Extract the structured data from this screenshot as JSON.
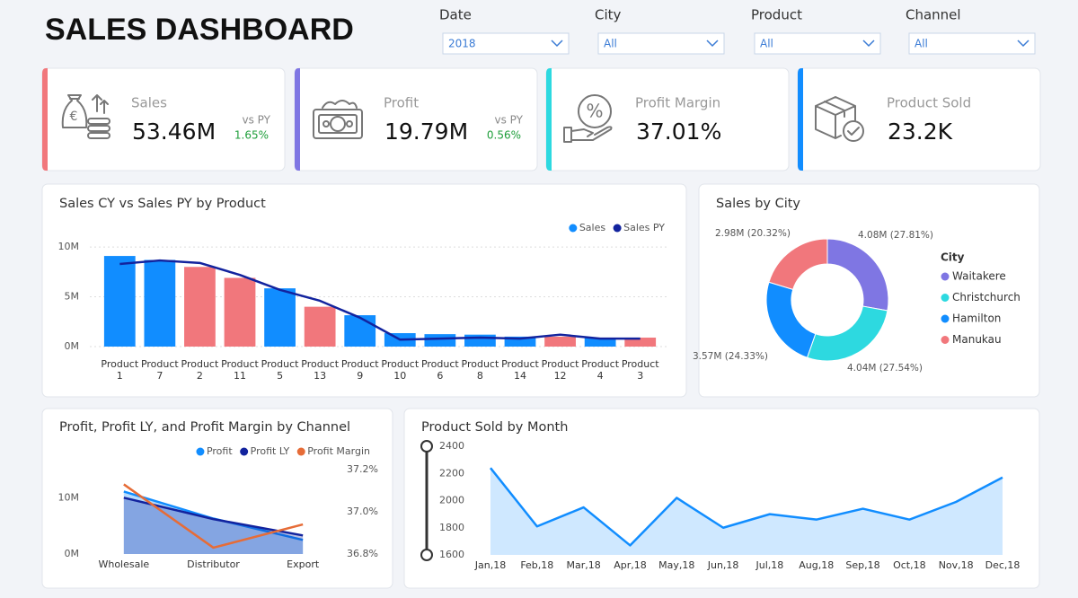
{
  "header": {
    "title": "SALES DASHBOARD"
  },
  "filters": [
    {
      "label": "Date",
      "value": "2018"
    },
    {
      "label": "City",
      "value": "All"
    },
    {
      "label": "Product",
      "value": "All"
    },
    {
      "label": "Channel",
      "value": "All"
    }
  ],
  "kpis": [
    {
      "label": "Sales",
      "value": "53.46M",
      "compare_label": "vs PY",
      "change": "1.65%",
      "color": "#F1777C"
    },
    {
      "label": "Profit",
      "value": "19.79M",
      "compare_label": "vs PY",
      "change": "0.56%",
      "color": "#7F76E3"
    },
    {
      "label": "Profit Margin",
      "value": "37.01%",
      "color": "#2DD9E0"
    },
    {
      "label": "Product Sold",
      "value": "23.2K",
      "color": "#118DFF"
    }
  ],
  "chart_data": [
    {
      "type": "combo",
      "title": "Sales CY vs Sales PY by Product",
      "categories": [
        "Product 1",
        "Product 7",
        "Product 2",
        "Product 11",
        "Product 5",
        "Product 13",
        "Product 9",
        "Product 10",
        "Product 6",
        "Product 8",
        "Product 14",
        "Product 12",
        "Product 4",
        "Product 3"
      ],
      "series": [
        {
          "name": "Sales",
          "type": "bar",
          "color": "#118DFF",
          "colors": [
            "#118DFF",
            "#118DFF",
            "#F1777C",
            "#F1777C",
            "#118DFF",
            "#F1777C",
            "#118DFF",
            "#118DFF",
            "#118DFF",
            "#118DFF",
            "#118DFF",
            "#F1777C",
            "#118DFF",
            "#F1777C"
          ],
          "values": [
            9.1,
            8.7,
            8.0,
            6.9,
            5.85,
            4.0,
            3.15,
            1.35,
            1.25,
            1.2,
            1.0,
            1.0,
            0.9,
            0.9
          ]
        },
        {
          "name": "Sales PY",
          "type": "line",
          "color": "#12239E",
          "values": [
            8.3,
            8.65,
            8.4,
            7.2,
            5.7,
            4.6,
            2.9,
            0.7,
            0.8,
            0.9,
            0.8,
            1.2,
            0.8,
            0.8
          ]
        }
      ],
      "ylim": [
        0,
        11
      ],
      "yticks": [
        {
          "value": 0,
          "label": "0M"
        },
        {
          "value": 5,
          "label": "5M"
        },
        {
          "value": 10,
          "label": "10M"
        }
      ],
      "grid": true,
      "legend": "top-right"
    },
    {
      "type": "donut",
      "title": "Sales by City",
      "legend_title": "City",
      "categories": [
        "Waitakere",
        "Christchurch",
        "Hamilton",
        "Manukau"
      ],
      "values": [
        4.08,
        4.04,
        3.57,
        2.98
      ],
      "value_labels": [
        "4.08M (27.81%)",
        "4.04M (27.54%)",
        "3.57M (24.33%)",
        "2.98M (20.32%)"
      ],
      "colors": [
        "#7F76E3",
        "#2DD9E0",
        "#118DFF",
        "#F1777C"
      ],
      "legend": "right"
    },
    {
      "type": "combo",
      "title": "Profit, Profit LY, and Profit Margin by Channel",
      "categories": [
        "Wholesale",
        "Distributor",
        "Export"
      ],
      "series": [
        {
          "name": "Profit",
          "type": "area",
          "color": "#118DFF",
          "values": [
            11.1,
            6.3,
            2.5
          ]
        },
        {
          "name": "Profit LY",
          "type": "area",
          "color": "#12239E",
          "values": [
            10.0,
            6.2,
            3.3
          ]
        },
        {
          "name": "Profit Margin",
          "type": "line",
          "axis": "y2",
          "color": "#E66C37",
          "values": [
            37.13,
            36.83,
            36.94
          ]
        }
      ],
      "ylim": [
        0,
        15
      ],
      "yticks": [
        {
          "value": 0,
          "label": "0M"
        },
        {
          "value": 10,
          "label": "10M"
        }
      ],
      "y2lim": [
        36.8,
        37.2
      ],
      "y2ticks": [
        {
          "value": 36.8,
          "label": "36.8%"
        },
        {
          "value": 37,
          "label": "37.0%"
        },
        {
          "value": 37.2,
          "label": "37.2%"
        }
      ],
      "grid": false,
      "legend": "top-right"
    },
    {
      "type": "area",
      "title": "Product Sold by Month",
      "categories": [
        "Jan,18",
        "Feb,18",
        "Mar,18",
        "Apr,18",
        "May,18",
        "Jun,18",
        "Jul,18",
        "Aug,18",
        "Sep,18",
        "Oct,18",
        "Nov,18",
        "Dec,18"
      ],
      "values": [
        2240,
        1810,
        1950,
        1670,
        2020,
        1800,
        1900,
        1860,
        1940,
        1860,
        1990,
        2170
      ],
      "color": "#118DFF",
      "ylim": [
        1600,
        2400
      ],
      "yticks": [
        1600,
        1800,
        2000,
        2200,
        2400
      ],
      "grid": false
    }
  ]
}
